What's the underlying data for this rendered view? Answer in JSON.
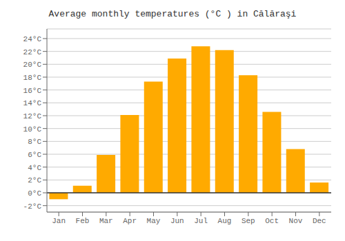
{
  "chart_data": {
    "type": "bar",
    "title": "Average monthly temperatures (°C ) in Călăraşi",
    "categories": [
      "Jan",
      "Feb",
      "Mar",
      "Apr",
      "May",
      "Jun",
      "Jul",
      "Aug",
      "Sep",
      "Oct",
      "Nov",
      "Dec"
    ],
    "values": [
      -1.0,
      1.1,
      5.9,
      12.1,
      17.3,
      20.9,
      22.8,
      22.2,
      18.3,
      12.6,
      6.8,
      1.6
    ],
    "color": "#FFAA00",
    "ylim": [
      -3,
      25.5
    ],
    "yticks": [
      {
        "value": -2,
        "label": "-2°C"
      },
      {
        "value": 0,
        "label": "0°C"
      },
      {
        "value": 2,
        "label": "2°C"
      },
      {
        "value": 4,
        "label": "4°C"
      },
      {
        "value": 6,
        "label": "6°C"
      },
      {
        "value": 8,
        "label": "8°C"
      },
      {
        "value": 10,
        "label": "10°C"
      },
      {
        "value": 12,
        "label": "12°C"
      },
      {
        "value": 14,
        "label": "14°C"
      },
      {
        "value": 16,
        "label": "16°C"
      },
      {
        "value": 18,
        "label": "18°C"
      },
      {
        "value": 20,
        "label": "20°C"
      },
      {
        "value": 22,
        "label": "22°C"
      },
      {
        "value": 24,
        "label": "24°C"
      }
    ],
    "grid": true
  }
}
